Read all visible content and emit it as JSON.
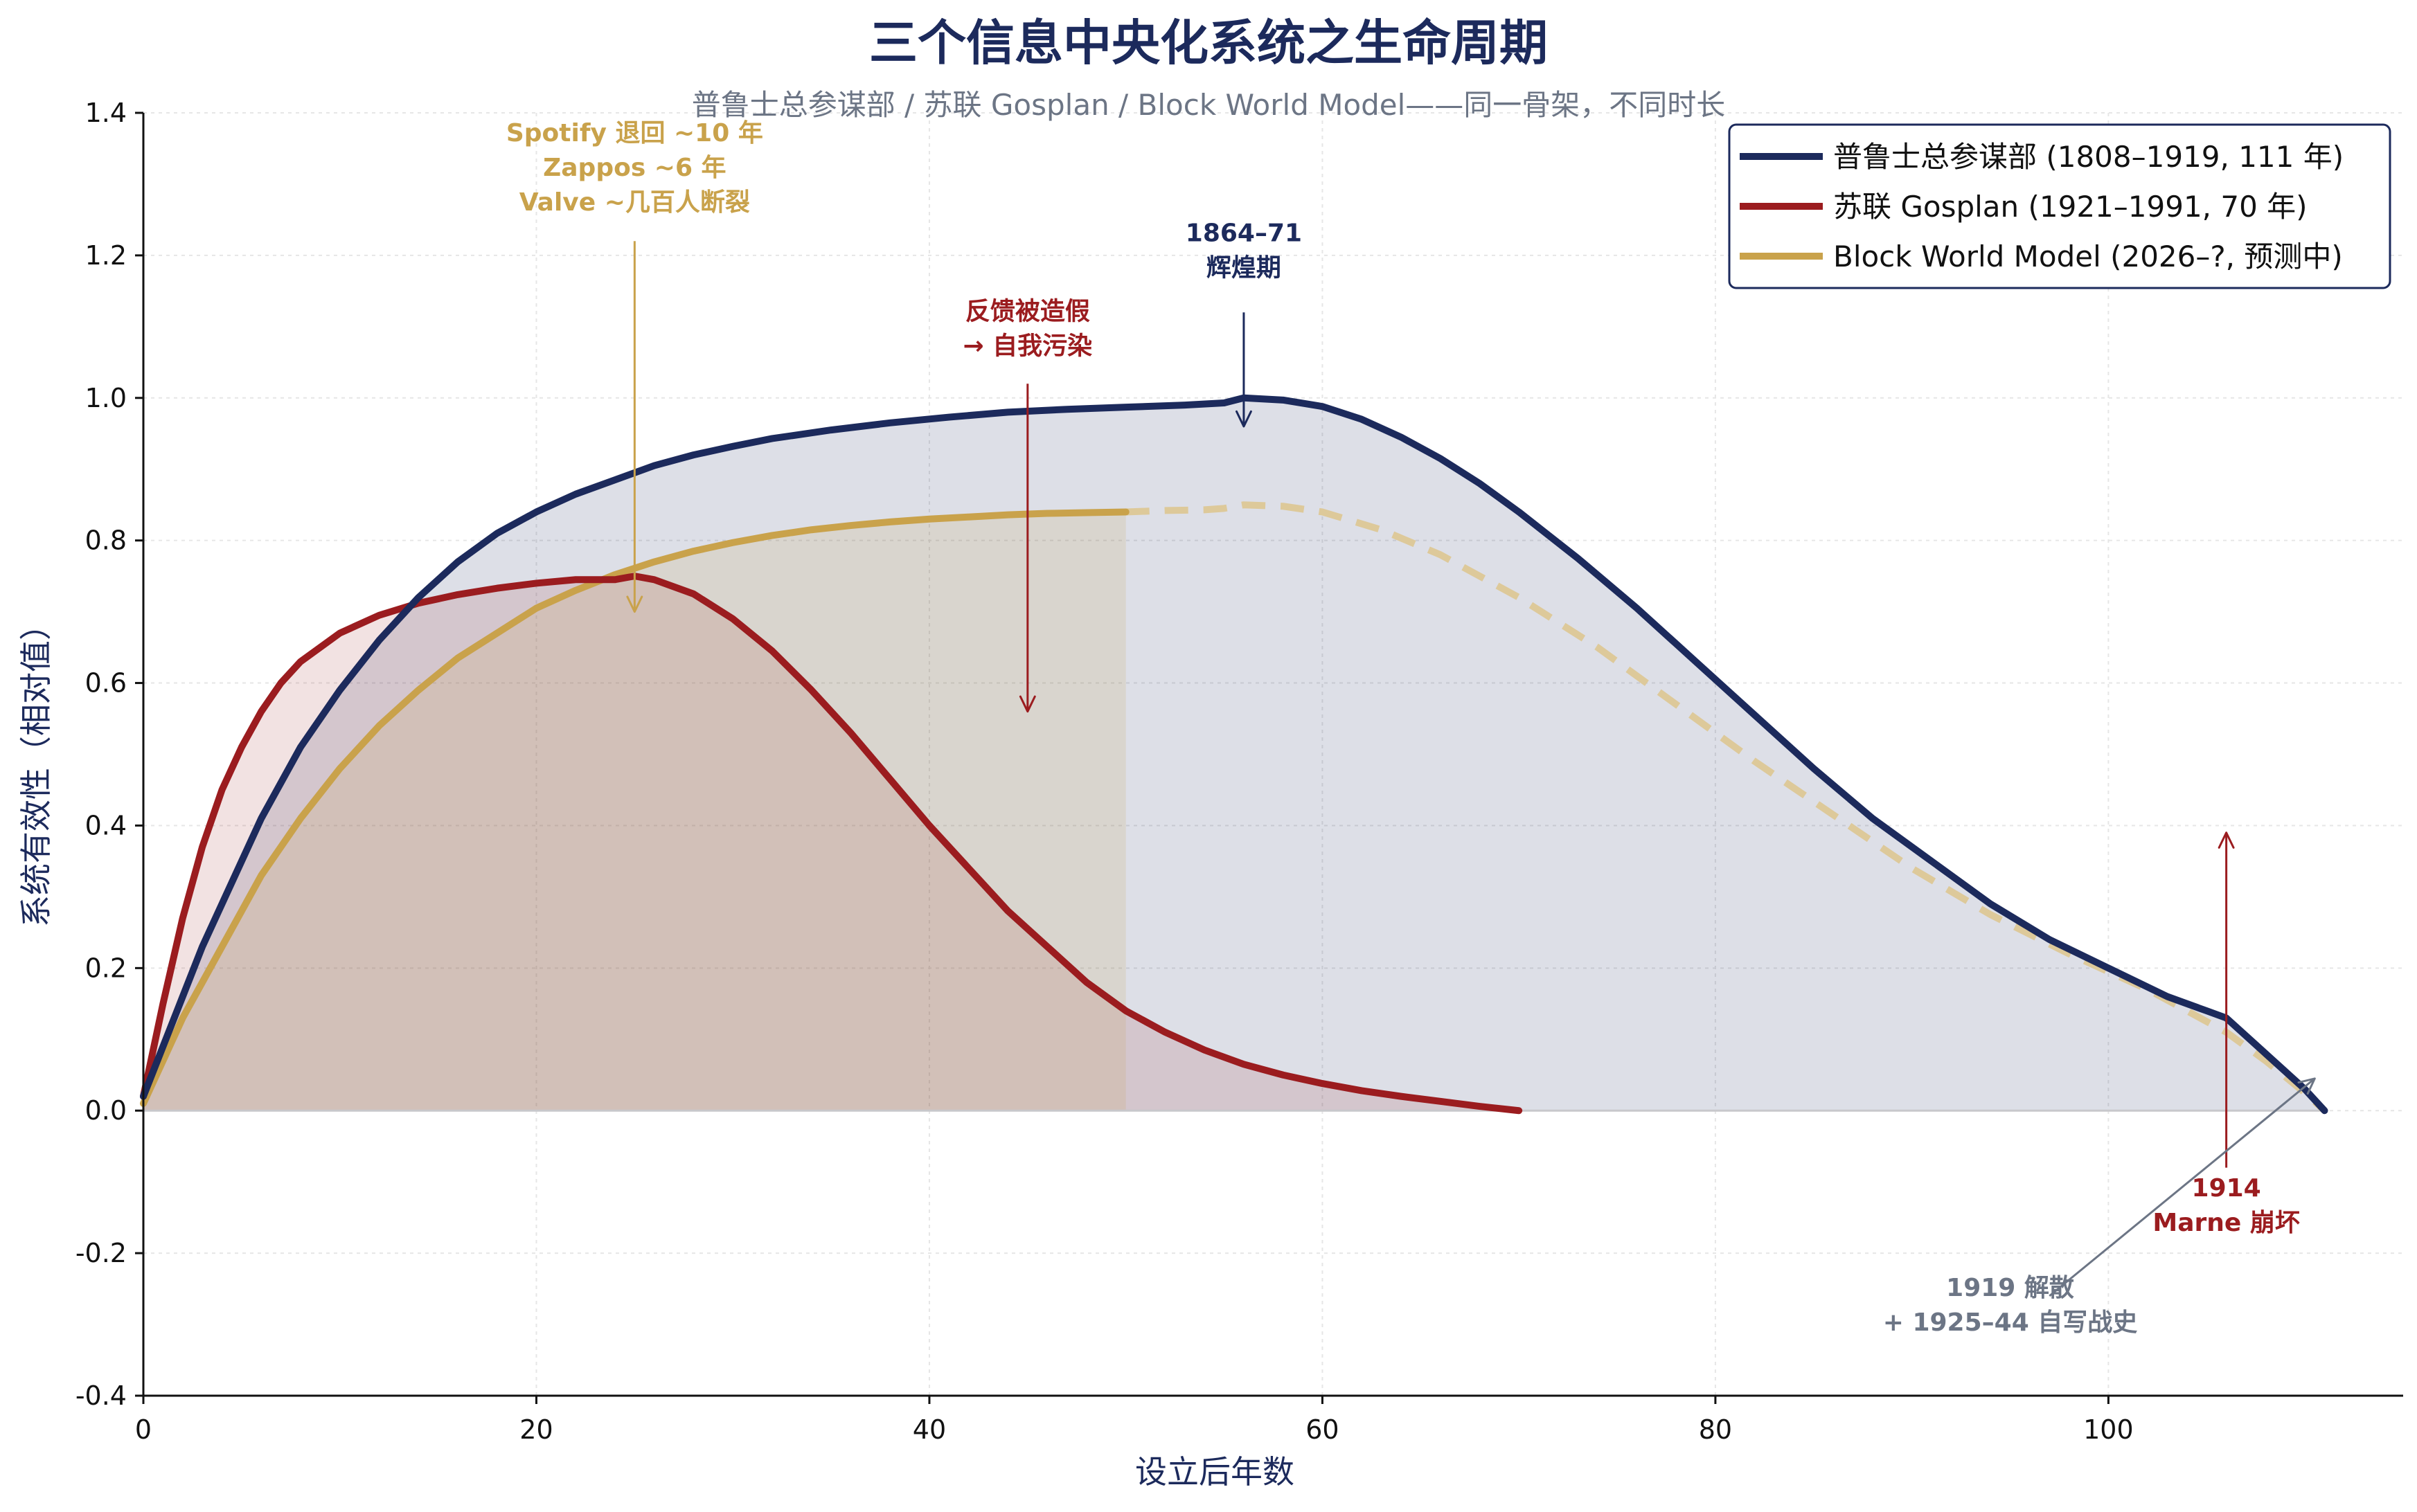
{
  "chart_data": {
    "type": "area",
    "title": "三个信息中央化系统之生命周期",
    "subtitle": "普鲁士总参谋部 / 苏联 Gosplan / Block World Model——同一骨架，不同时长",
    "xlabel": "设立后年数",
    "ylabel": "系统有效性（相对值）",
    "xlim": [
      0,
      115
    ],
    "ylim": [
      -0.4,
      1.4
    ],
    "xticks": [
      0,
      20,
      40,
      60,
      80,
      100
    ],
    "xtick_labels": [
      "0",
      "20",
      "40",
      "60",
      "80",
      "100"
    ],
    "yticks": [
      -0.4,
      -0.2,
      0.0,
      0.2,
      0.4,
      0.6,
      0.8,
      1.0,
      1.2,
      1.4
    ],
    "ytick_labels": [
      "-0.4",
      "-0.2",
      "0.0",
      "0.2",
      "0.4",
      "0.6",
      "0.8",
      "1.0",
      "1.2",
      "1.4"
    ],
    "grid": true,
    "legend_position": "top-right",
    "series": [
      {
        "name": "普鲁士总参谋部 (1808–1919, 111 年)",
        "color": "#1c2a5c",
        "style": "solid",
        "filled": true,
        "x": [
          0,
          1,
          2,
          3,
          4,
          5,
          6,
          7,
          8,
          10,
          12,
          14,
          16,
          18,
          20,
          22,
          24,
          26,
          28,
          30,
          32,
          35,
          38,
          41,
          44,
          47,
          50,
          53,
          55,
          56,
          58,
          60,
          62,
          64,
          66,
          68,
          70,
          73,
          76,
          79,
          82,
          85,
          88,
          91,
          94,
          97,
          100,
          103,
          105,
          106,
          108,
          110,
          111
        ],
        "y": [
          0.02,
          0.09,
          0.16,
          0.23,
          0.29,
          0.35,
          0.41,
          0.46,
          0.51,
          0.59,
          0.66,
          0.72,
          0.77,
          0.81,
          0.84,
          0.865,
          0.885,
          0.905,
          0.92,
          0.932,
          0.943,
          0.955,
          0.965,
          0.973,
          0.98,
          0.984,
          0.987,
          0.99,
          0.993,
          1.0,
          0.997,
          0.988,
          0.97,
          0.945,
          0.915,
          0.88,
          0.84,
          0.775,
          0.705,
          0.63,
          0.555,
          0.48,
          0.41,
          0.35,
          0.29,
          0.24,
          0.2,
          0.16,
          0.14,
          0.13,
          0.08,
          0.03,
          0.0
        ]
      },
      {
        "name": "苏联 Gosplan (1921–1991, 70 年)",
        "color": "#9b1c1f",
        "style": "solid",
        "filled": true,
        "x": [
          0,
          1,
          2,
          3,
          4,
          5,
          6,
          7,
          8,
          10,
          12,
          14,
          16,
          18,
          20,
          22,
          24,
          25,
          26,
          28,
          30,
          32,
          34,
          36,
          38,
          40,
          42,
          44,
          46,
          48,
          50,
          52,
          54,
          56,
          58,
          60,
          62,
          64,
          66,
          68,
          70
        ],
        "y": [
          0.02,
          0.15,
          0.27,
          0.37,
          0.45,
          0.51,
          0.56,
          0.6,
          0.63,
          0.67,
          0.695,
          0.712,
          0.724,
          0.733,
          0.74,
          0.745,
          0.745,
          0.75,
          0.745,
          0.725,
          0.69,
          0.645,
          0.59,
          0.53,
          0.465,
          0.4,
          0.34,
          0.28,
          0.23,
          0.18,
          0.14,
          0.11,
          0.085,
          0.065,
          0.05,
          0.038,
          0.028,
          0.02,
          0.013,
          0.006,
          0.0
        ]
      },
      {
        "name": "Block World Model (2026–?, 预测中)",
        "color": "#c9a24b",
        "style": "solid",
        "filled": true,
        "x": [
          0,
          1,
          2,
          3,
          4,
          5,
          6,
          7,
          8,
          10,
          12,
          14,
          16,
          18,
          20,
          22,
          24,
          26,
          28,
          30,
          32,
          34,
          36,
          38,
          40,
          42,
          44,
          46,
          48,
          50
        ],
        "y": [
          0.01,
          0.07,
          0.13,
          0.18,
          0.23,
          0.28,
          0.33,
          0.37,
          0.41,
          0.48,
          0.54,
          0.59,
          0.635,
          0.67,
          0.705,
          0.73,
          0.752,
          0.77,
          0.785,
          0.797,
          0.807,
          0.815,
          0.821,
          0.826,
          0.83,
          0.833,
          0.836,
          0.838,
          0.839,
          0.84
        ]
      },
      {
        "name": "",
        "color": "#ddc99a",
        "style": "dashed",
        "filled": false,
        "x": [
          50,
          52,
          54,
          55,
          56,
          58,
          60,
          63,
          66,
          70,
          74,
          78,
          82,
          86,
          90,
          94,
          98,
          102,
          104,
          106,
          108,
          110,
          111
        ],
        "y": [
          0.84,
          0.842,
          0.843,
          0.845,
          0.85,
          0.848,
          0.84,
          0.815,
          0.78,
          0.72,
          0.65,
          0.57,
          0.49,
          0.415,
          0.34,
          0.275,
          0.22,
          0.17,
          0.14,
          0.11,
          0.07,
          0.025,
          0.0
        ]
      }
    ],
    "annotations": [
      {
        "lines": [
          "Spotify 退回 ~10 年",
          "Zappos ~6 年",
          "Valve ~几百人断裂"
        ],
        "color": "#c9a24b",
        "text_x": 25,
        "text_y": 1.36,
        "arrow_from": [
          25,
          1.22
        ],
        "arrow_to": [
          25,
          0.7
        ]
      },
      {
        "lines": [
          "1864–71",
          "辉煌期"
        ],
        "color": "#1c2a5c",
        "text_x": 56,
        "text_y": 1.22,
        "arrow_from": [
          56,
          1.12
        ],
        "arrow_to": [
          56,
          0.96
        ]
      },
      {
        "lines": [
          "反馈被造假",
          "→ 自我污染"
        ],
        "color": "#9b1c1f",
        "text_x": 45,
        "text_y": 1.11,
        "arrow_from": [
          45,
          1.02
        ],
        "arrow_to": [
          45,
          0.56
        ]
      },
      {
        "lines": [
          "1914",
          "Marne 崩坏"
        ],
        "color": "#9b1c1f",
        "text_x": 106,
        "text_y": -0.12,
        "arrow_from": [
          106,
          -0.08
        ],
        "arrow_to": [
          106,
          0.39
        ]
      },
      {
        "lines": [
          "1919 解散",
          "+ 1925–44 自写战史"
        ],
        "color": "#6c7585",
        "text_x": 95,
        "text_y": -0.26,
        "arrow_from": [
          97,
          -0.26
        ],
        "arrow_to": [
          110.5,
          0.045
        ]
      }
    ]
  }
}
